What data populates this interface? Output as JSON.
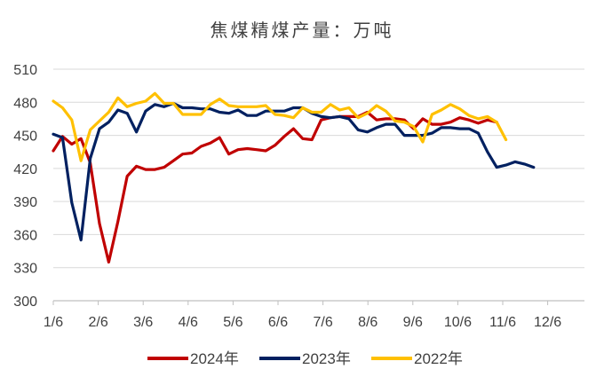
{
  "chart_data": {
    "type": "line",
    "title": "焦煤精煤产量：万吨",
    "xlabel": "",
    "ylabel": "",
    "ylim": [
      300,
      510
    ],
    "yticks": [
      300,
      330,
      360,
      390,
      420,
      450,
      480,
      510
    ],
    "x_tick_labels": [
      "1/6",
      "2/6",
      "3/6",
      "4/6",
      "5/6",
      "6/6",
      "7/6",
      "8/6",
      "9/6",
      "10/6",
      "11/6",
      "12/6"
    ],
    "grid": "horizontal",
    "legend_position": "bottom",
    "x_unit": "week",
    "series": [
      {
        "name": "2024年",
        "color": "#C00000",
        "x": [
          0,
          1,
          2,
          3,
          4,
          5,
          6,
          7,
          8,
          9,
          10,
          11,
          12,
          13,
          14,
          15,
          16,
          17,
          18,
          19,
          20,
          21,
          22,
          23,
          24,
          25,
          26,
          27,
          28,
          29,
          30,
          31,
          32,
          33,
          34,
          35,
          36,
          37,
          38,
          39,
          40,
          41,
          42,
          43,
          44,
          45,
          46,
          47,
          48
        ],
        "values": [
          436,
          449,
          442,
          447,
          425,
          370,
          335,
          372,
          413,
          422,
          419,
          419,
          421,
          427,
          433,
          434,
          440,
          443,
          448,
          433,
          437,
          438,
          437,
          436,
          441,
          449,
          456,
          447,
          446,
          464,
          466,
          467,
          467,
          467,
          471,
          464,
          465,
          465,
          464,
          456,
          465,
          460,
          460,
          462,
          466,
          464,
          461,
          464,
          462
        ]
      },
      {
        "name": "2023年",
        "color": "#002060",
        "x": [
          0,
          1,
          2,
          3,
          4,
          5,
          6,
          7,
          8,
          9,
          10,
          11,
          12,
          13,
          14,
          15,
          16,
          17,
          18,
          19,
          20,
          21,
          22,
          23,
          24,
          25,
          26,
          27,
          28,
          29,
          30,
          31,
          32,
          33,
          34,
          35,
          36,
          37,
          38,
          39,
          40,
          41,
          42,
          43,
          44,
          45,
          46,
          47,
          48,
          49,
          50,
          51,
          52
        ],
        "values": [
          451,
          448,
          389,
          355,
          429,
          456,
          462,
          473,
          470,
          453,
          472,
          478,
          476,
          479,
          475,
          475,
          474,
          474,
          471,
          470,
          473,
          468,
          468,
          472,
          472,
          472,
          475,
          475,
          470,
          467,
          466,
          467,
          465,
          455,
          453,
          457,
          460,
          460,
          450,
          450,
          450,
          452,
          457,
          457,
          456,
          456,
          452,
          435,
          421,
          423,
          426,
          424,
          421
        ]
      },
      {
        "name": "2022年",
        "color": "#FFC000",
        "x": [
          0,
          1,
          2,
          3,
          4,
          5,
          6,
          7,
          8,
          9,
          10,
          11,
          12,
          13,
          14,
          15,
          16,
          17,
          18,
          19,
          20,
          21,
          22,
          23,
          24,
          25,
          26,
          27,
          28,
          29,
          30,
          31,
          32,
          33,
          34,
          35,
          36,
          37,
          38,
          39,
          40,
          41,
          42,
          43,
          44,
          45,
          46,
          47,
          48,
          49
        ],
        "values": [
          481,
          475,
          464,
          427,
          455,
          463,
          471,
          484,
          476,
          479,
          481,
          488,
          479,
          479,
          469,
          469,
          469,
          478,
          483,
          477,
          476,
          476,
          476,
          477,
          469,
          468,
          466,
          475,
          471,
          471,
          478,
          473,
          475,
          466,
          470,
          477,
          472,
          463,
          462,
          458,
          444,
          469,
          473,
          478,
          474,
          468,
          465,
          467,
          462,
          446
        ]
      }
    ]
  }
}
